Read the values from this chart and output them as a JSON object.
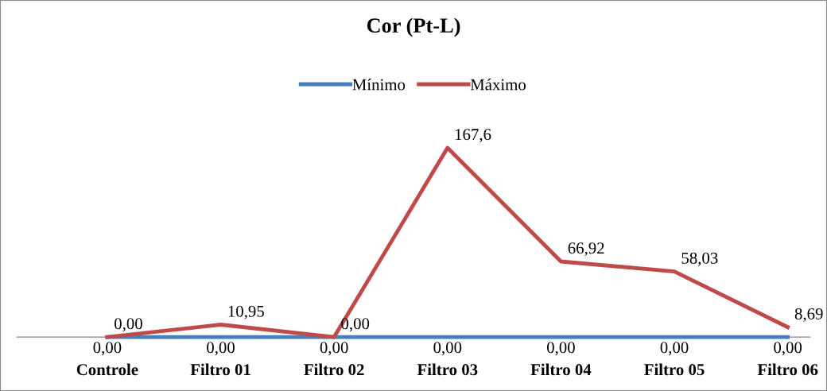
{
  "chart_data": {
    "type": "line",
    "title": "Cor (Pt-L)",
    "categories": [
      "Controle",
      "Filtro 01",
      "Filtro 02",
      "Filtro 03",
      "Filtro 04",
      "Filtro 05",
      "Filtro 06"
    ],
    "series": [
      {
        "name": "Mínimo",
        "color": "#4a7ebb",
        "values": [
          0,
          0,
          0,
          0,
          0,
          0,
          0
        ],
        "value_labels": [
          "0,00",
          "0,00",
          "0,00",
          "0,00",
          "0,00",
          "0,00",
          "0,00"
        ]
      },
      {
        "name": "Máximo",
        "color": "#be4b48",
        "values": [
          0,
          10.95,
          0,
          167.6,
          66.92,
          58.03,
          8.69
        ],
        "value_labels": [
          "0,00",
          "10,95",
          "0,00",
          "167,6",
          "66,92",
          "58,03",
          "8,69"
        ]
      }
    ],
    "legend": "top",
    "grid": false,
    "marker": "none",
    "line_style": "solid",
    "tick_labels": "x"
  }
}
